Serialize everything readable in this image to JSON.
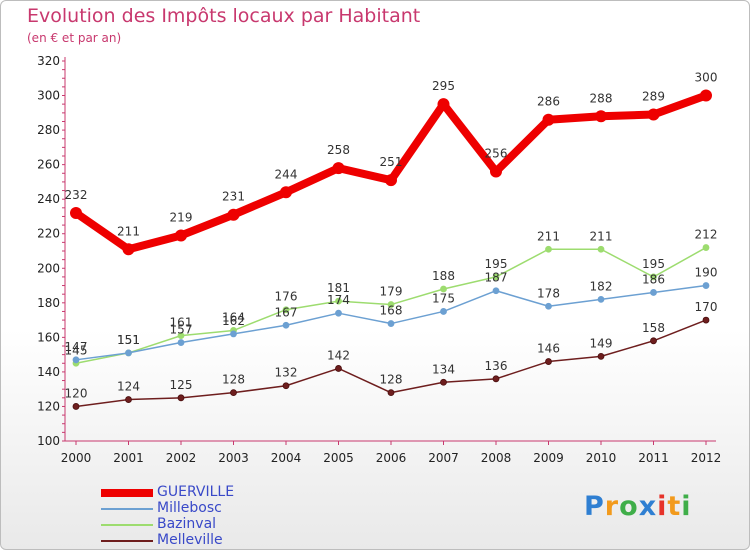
{
  "title": "Evolution des Impôts locaux par Habitant",
  "subtitle": "(en € et par an)",
  "logo": {
    "text": "Proxiti",
    "colors": [
      "#2f7fd2",
      "#f29a1c",
      "#3fae49",
      "#2f7fd2",
      "#e6332a",
      "#f29a1c",
      "#3fae49"
    ]
  },
  "chart_data": {
    "type": "line",
    "title": "Evolution des Impôts locaux par Habitant",
    "subtitle": "(en € et par an)",
    "xlabel": "",
    "ylabel": "",
    "ylim": [
      100,
      320
    ],
    "yticks": [
      100,
      120,
      140,
      160,
      180,
      200,
      220,
      240,
      260,
      280,
      300,
      320
    ],
    "grid": false,
    "legend_position": "bottom-left",
    "categories": [
      "2000",
      "2001",
      "2002",
      "2003",
      "2004",
      "2005",
      "2006",
      "2007",
      "2008",
      "2009",
      "2010",
      "2011",
      "2012"
    ],
    "series": [
      {
        "name": "Melleville",
        "color": "#6e1e1e",
        "width": 1.5,
        "marker": 3,
        "values": [
          120,
          124,
          125,
          128,
          132,
          142,
          128,
          134,
          136,
          146,
          149,
          158,
          170
        ]
      },
      {
        "name": "Bazinval",
        "color": "#9ddc6f",
        "width": 1.5,
        "marker": 3,
        "values": [
          145,
          151,
          161,
          164,
          176,
          181,
          179,
          188,
          195,
          211,
          211,
          195,
          212
        ]
      },
      {
        "name": "Millebosc",
        "color": "#6ca0d2",
        "width": 1.5,
        "marker": 3,
        "values": [
          147,
          151,
          157,
          162,
          167,
          174,
          168,
          175,
          187,
          178,
          182,
          186,
          190
        ]
      },
      {
        "name": "GUERVILLE",
        "color": "#ee0000",
        "width": 8,
        "marker": 6,
        "values": [
          232,
          211,
          219,
          231,
          244,
          258,
          251,
          295,
          256,
          286,
          288,
          289,
          300
        ]
      }
    ],
    "legend_order": [
      "GUERVILLE",
      "Millebosc",
      "Bazinval",
      "Melleville"
    ]
  }
}
